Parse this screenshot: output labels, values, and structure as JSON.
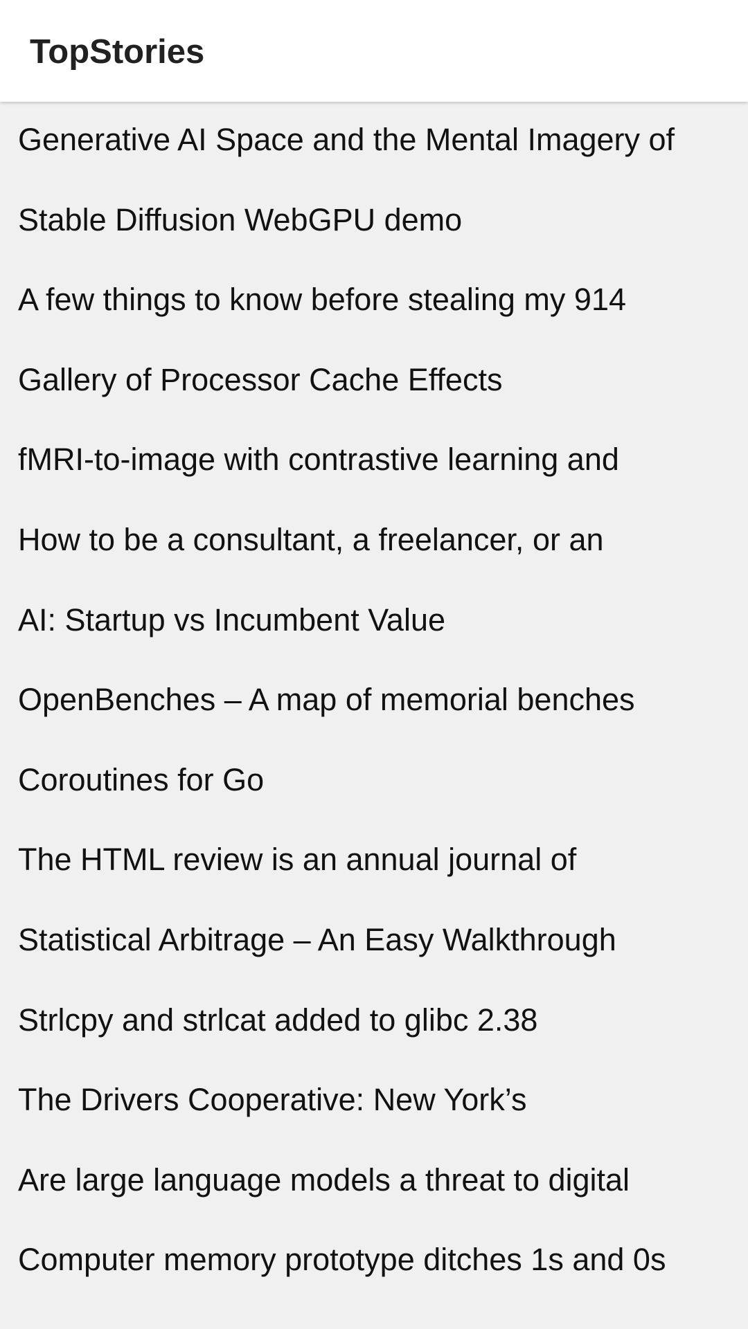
{
  "app": {
    "title": "TopStories"
  },
  "stories": [
    {
      "title": "Generative AI Space and the Mental Imagery of"
    },
    {
      "title": "Stable Diffusion WebGPU demo"
    },
    {
      "title": "A few things to know before stealing my 914"
    },
    {
      "title": "Gallery of Processor Cache Effects"
    },
    {
      "title": "fMRI-to-image with contrastive learning and"
    },
    {
      "title": "How to be a consultant, a freelancer, or an"
    },
    {
      "title": "AI: Startup vs Incumbent Value"
    },
    {
      "title": "OpenBenches – A map of memorial benches"
    },
    {
      "title": "Coroutines for Go"
    },
    {
      "title": "The HTML review is an annual journal of"
    },
    {
      "title": "Statistical Arbitrage – An Easy Walkthrough"
    },
    {
      "title": "Strlcpy and strlcat added to glibc 2.38"
    },
    {
      "title": "The Drivers Cooperative: New York’s"
    },
    {
      "title": "Are large language models a threat to digital"
    },
    {
      "title": "Computer memory prototype ditches 1s and 0s"
    }
  ],
  "colors": {
    "app_bar_background": "#ffffff",
    "list_background": "#f0f0f0",
    "text": "#111111"
  }
}
